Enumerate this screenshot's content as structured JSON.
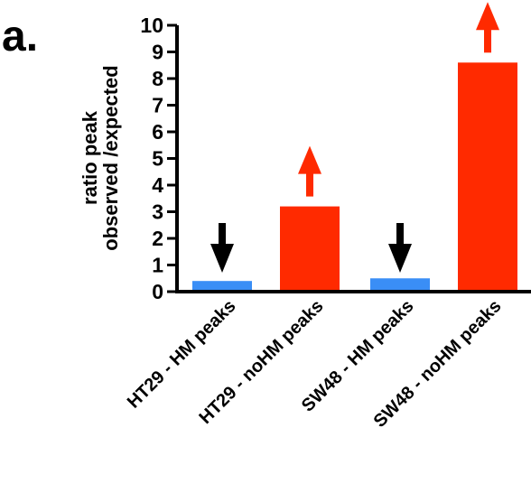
{
  "panel_label": "a.",
  "chart_data": {
    "type": "bar",
    "categories": [
      "HT29 - HM peaks",
      "HT29 - noHM peaks",
      "SW48 - HM peaks",
      "SW48 - noHM peaks"
    ],
    "values": [
      0.4,
      3.2,
      0.5,
      8.6
    ],
    "bar_colors": [
      "#3a8ef6",
      "#ff2a00",
      "#3a8ef6",
      "#ff2a00"
    ],
    "arrows": [
      "down",
      "up",
      "down",
      "up"
    ],
    "arrow_colors": {
      "down": "#000000",
      "up": "#ff2a00"
    },
    "ylabel_lines": [
      "ratio  peak",
      "observed /expected"
    ],
    "xlabel": "",
    "title": "",
    "ylim": [
      0,
      10
    ],
    "yticks": [
      "0",
      "1",
      "2",
      "3",
      "4",
      "5",
      "6",
      "7",
      "8",
      "9",
      "10"
    ],
    "grid": false
  }
}
